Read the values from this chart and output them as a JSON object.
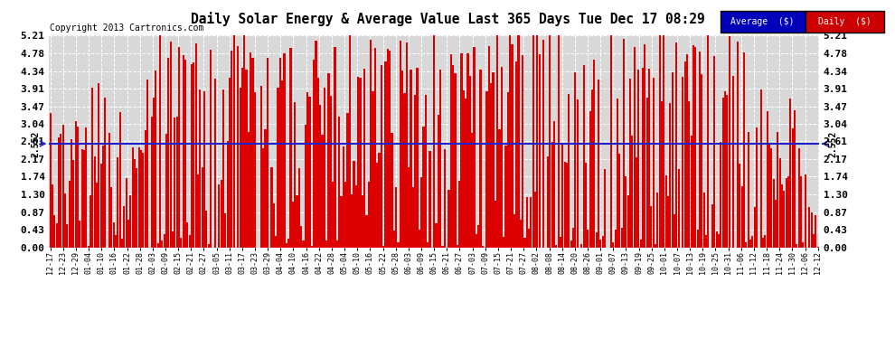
{
  "title": "Daily Solar Energy & Average Value Last 365 Days Tue Dec 17 08:29",
  "copyright": "Copyright 2013 Cartronics.com",
  "bar_color": "#dd0000",
  "avg_line_color": "#2222cc",
  "avg_value": 2.552,
  "avg_label": "2.552",
  "ymax": 5.21,
  "yticks": [
    0.0,
    0.43,
    0.87,
    1.3,
    1.74,
    2.17,
    2.61,
    3.04,
    3.47,
    3.91,
    4.34,
    4.78,
    5.21
  ],
  "background_color": "#ffffff",
  "plot_bg_color": "#d8d8d8",
  "grid_color": "#ffffff",
  "x_labels": [
    "12-17",
    "12-23",
    "12-29",
    "01-04",
    "01-10",
    "01-16",
    "01-22",
    "01-28",
    "02-03",
    "02-09",
    "02-15",
    "02-21",
    "02-27",
    "03-05",
    "03-11",
    "03-17",
    "03-23",
    "03-29",
    "04-04",
    "04-10",
    "04-16",
    "04-22",
    "04-28",
    "05-04",
    "05-10",
    "05-16",
    "05-22",
    "05-28",
    "06-03",
    "06-09",
    "06-15",
    "06-21",
    "06-27",
    "07-03",
    "07-09",
    "07-15",
    "07-21",
    "07-27",
    "08-02",
    "08-08",
    "08-14",
    "08-20",
    "08-26",
    "09-01",
    "09-07",
    "09-13",
    "09-19",
    "09-25",
    "10-01",
    "10-07",
    "10-13",
    "10-19",
    "10-25",
    "10-31",
    "11-06",
    "11-12",
    "11-18",
    "11-24",
    "11-30",
    "12-06",
    "12-12"
  ],
  "legend_avg_color": "#0000bb",
  "legend_daily_color": "#cc0000",
  "legend_avg_label": "Average  ($)",
  "legend_daily_label": "Daily  ($)"
}
